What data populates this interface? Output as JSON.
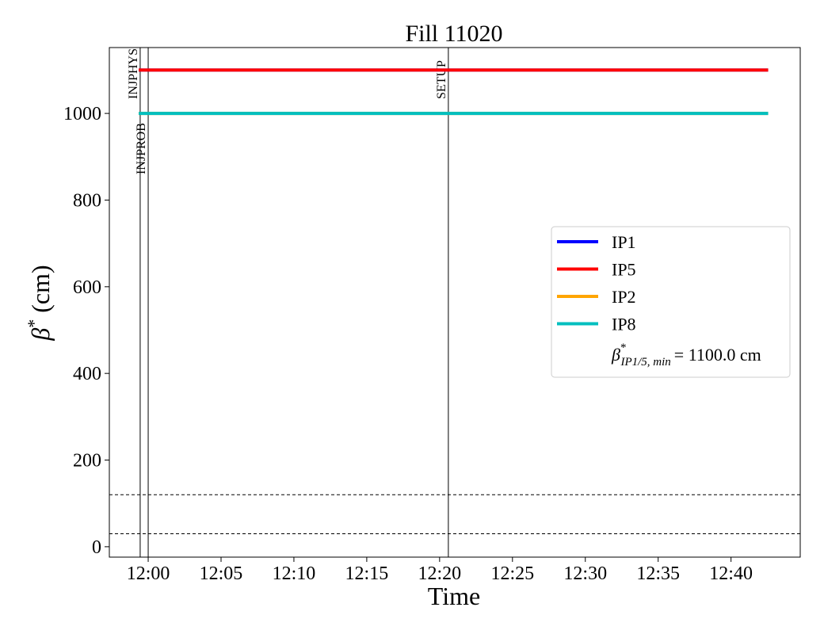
{
  "chart_data": {
    "type": "line",
    "title": "Fill 11020",
    "xlabel": "Time",
    "ylabel": {
      "symbol": "β",
      "sup": "*",
      "text": "(cm)"
    },
    "xlim": [
      "11:57:20",
      "12:44:45"
    ],
    "xticks": [
      "12:00",
      "12:05",
      "12:10",
      "12:15",
      "12:20",
      "12:25",
      "12:30",
      "12:35",
      "12:40"
    ],
    "ylim": [
      -24,
      1152
    ],
    "yticks": [
      0,
      200,
      400,
      600,
      800,
      1000
    ],
    "x": [
      "11:59:21",
      "12:42:33"
    ],
    "series": [
      {
        "name": "IP1",
        "color": "#0000ff",
        "values": [
          1100,
          1100
        ]
      },
      {
        "name": "IP5",
        "color": "#ff0000",
        "values": [
          1100,
          1100
        ]
      },
      {
        "name": "IP2",
        "color": "#ffa500",
        "values": [
          1000,
          1000
        ]
      },
      {
        "name": "IP8",
        "color": "#00bfbf",
        "values": [
          1000,
          1000
        ]
      }
    ],
    "vlines": [
      {
        "x": "11:59:27",
        "label": "INJPHYS"
      },
      {
        "x": "12:00:00",
        "label": "INJPROB"
      },
      {
        "x": "12:20:36",
        "label": "SETUP"
      }
    ],
    "hlines": [
      120,
      30
    ],
    "legend_extra": {
      "symbol": "β",
      "sup": "*",
      "sub": "IP1/5, min",
      "text": "= 1100.0 cm"
    },
    "legend": "right"
  }
}
